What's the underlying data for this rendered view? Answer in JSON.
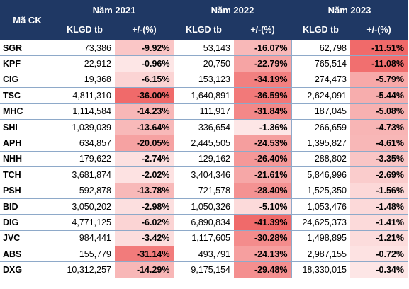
{
  "header": {
    "code_label": "Mã CK",
    "years": [
      "Năm 2021",
      "Năm 2022",
      "Năm 2023"
    ],
    "vol_label": "KLGD tb",
    "pct_label": "+/-(%)"
  },
  "colors": {
    "header_bg": "#1f3864",
    "header_text": "#ffffff",
    "neg_strong": "#f06a6a",
    "neg_light": "#fde6e6"
  },
  "rows": [
    {
      "code": "SGR",
      "v2021": "73,386",
      "p2021": "-9.92%",
      "v2022": "53,143",
      "p2022": "-16.07%",
      "v2023": "62,798",
      "p2023": "-11.51%"
    },
    {
      "code": "KPF",
      "v2021": "22,912",
      "p2021": "-0.96%",
      "v2022": "20,750",
      "p2022": "-22.79%",
      "v2023": "765,514",
      "p2023": "-11.08%"
    },
    {
      "code": "CIG",
      "v2021": "19,368",
      "p2021": "-6.15%",
      "v2022": "153,123",
      "p2022": "-34.19%",
      "v2023": "274,473",
      "p2023": "-5.79%"
    },
    {
      "code": "TSC",
      "v2021": "4,811,310",
      "p2021": "-36.00%",
      "v2022": "1,640,891",
      "p2022": "-36.59%",
      "v2023": "2,624,091",
      "p2023": "-5.44%"
    },
    {
      "code": "MHC",
      "v2021": "1,114,584",
      "p2021": "-14.23%",
      "v2022": "111,917",
      "p2022": "-31.84%",
      "v2023": "187,045",
      "p2023": "-5.08%"
    },
    {
      "code": "SHI",
      "v2021": "1,039,039",
      "p2021": "-13.64%",
      "v2022": "336,654",
      "p2022": "-1.36%",
      "v2023": "266,659",
      "p2023": "-4.73%"
    },
    {
      "code": "APH",
      "v2021": "634,857",
      "p2021": "-20.05%",
      "v2022": "2,445,505",
      "p2022": "-24.53%",
      "v2023": "1,395,827",
      "p2023": "-4.61%"
    },
    {
      "code": "NHH",
      "v2021": "179,622",
      "p2021": "-2.74%",
      "v2022": "129,162",
      "p2022": "-26.40%",
      "v2023": "288,802",
      "p2023": "-3.35%"
    },
    {
      "code": "TCH",
      "v2021": "3,681,874",
      "p2021": "-2.02%",
      "v2022": "3,404,346",
      "p2022": "-21.61%",
      "v2023": "5,846,996",
      "p2023": "-2.69%"
    },
    {
      "code": "PSH",
      "v2021": "592,878",
      "p2021": "-13.78%",
      "v2022": "721,578",
      "p2022": "-28.40%",
      "v2023": "1,525,350",
      "p2023": "-1.56%"
    },
    {
      "code": "BID",
      "v2021": "3,050,202",
      "p2021": "-2.98%",
      "v2022": "1,050,326",
      "p2022": "-5.10%",
      "v2023": "1,053,476",
      "p2023": "-1.48%"
    },
    {
      "code": "DIG",
      "v2021": "4,771,125",
      "p2021": "-6.02%",
      "v2022": "6,890,834",
      "p2022": "-41.39%",
      "v2023": "24,625,373",
      "p2023": "-1.41%"
    },
    {
      "code": "JVC",
      "v2021": "984,441",
      "p2021": "-3.42%",
      "v2022": "1,117,605",
      "p2022": "-30.28%",
      "v2023": "1,498,895",
      "p2023": "-1.21%"
    },
    {
      "code": "ABS",
      "v2021": "155,779",
      "p2021": "-31.14%",
      "v2022": "493,791",
      "p2022": "-24.13%",
      "v2023": "2,987,155",
      "p2023": "-0.72%"
    },
    {
      "code": "DXG",
      "v2021": "10,312,257",
      "p2021": "-14.29%",
      "v2022": "9,175,154",
      "p2022": "-29.48%",
      "v2023": "18,330,015",
      "p2023": "-0.34%"
    }
  ]
}
